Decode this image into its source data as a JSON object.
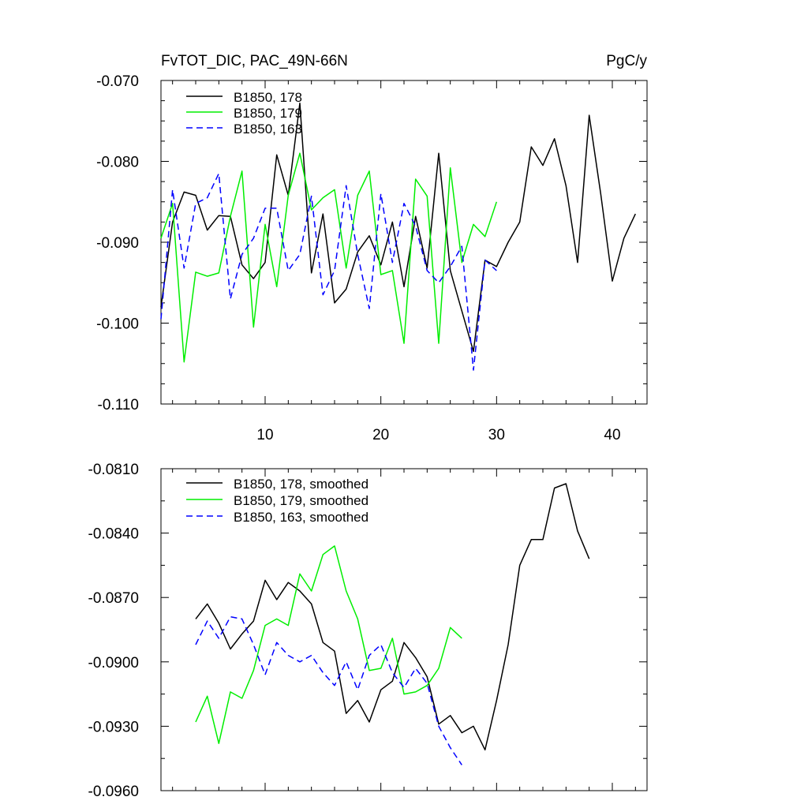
{
  "chart_data": [
    {
      "type": "line",
      "title_left": "FvTOT_DIC, PAC_49N-66N",
      "title_right": "PgC/y",
      "xlabel": "",
      "ylabel": "",
      "xlim": [
        1,
        43
      ],
      "ylim": [
        -0.11,
        -0.07
      ],
      "yticks": [
        -0.11,
        -0.1,
        -0.09,
        -0.08,
        -0.07
      ],
      "ytick_labels": [
        "-0.110",
        "-0.100",
        "-0.090",
        "-0.080",
        "-0.070"
      ],
      "xticks": [
        10,
        20,
        30,
        40
      ],
      "xtick_labels": [
        "10",
        "20",
        "30",
        "40"
      ],
      "legend_position": "top-left",
      "series": [
        {
          "name": "B1850, 178",
          "color": "#000000",
          "dash": "solid",
          "x": [
            1,
            2,
            3,
            4,
            5,
            6,
            7,
            8,
            9,
            10,
            11,
            12,
            13,
            14,
            15,
            16,
            17,
            18,
            19,
            20,
            21,
            22,
            23,
            24,
            25,
            26,
            27,
            28,
            29,
            30,
            31,
            32,
            33,
            34,
            35,
            36,
            37,
            38,
            39,
            40,
            41,
            42
          ],
          "values": [
            -0.098,
            -0.0875,
            -0.0838,
            -0.0842,
            -0.0885,
            -0.0867,
            -0.0868,
            -0.0928,
            -0.0945,
            -0.0925,
            -0.0792,
            -0.0842,
            -0.0728,
            -0.0938,
            -0.0865,
            -0.0975,
            -0.0958,
            -0.0912,
            -0.0892,
            -0.0928,
            -0.0875,
            -0.0955,
            -0.0868,
            -0.0932,
            -0.079,
            -0.0935,
            -0.0985,
            -0.1035,
            -0.0922,
            -0.093,
            -0.09,
            -0.0875,
            -0.0782,
            -0.0805,
            -0.0772,
            -0.083,
            -0.0925,
            -0.0743,
            -0.084,
            -0.0948,
            -0.0895,
            -0.0865
          ]
        },
        {
          "name": "B1850, 179",
          "color": "#00ee00",
          "dash": "solid",
          "x": [
            1,
            2,
            3,
            4,
            5,
            6,
            7,
            8,
            9,
            10,
            11,
            12,
            13,
            14,
            15,
            16,
            17,
            18,
            19,
            20,
            21,
            22,
            23,
            24,
            25,
            26,
            27,
            28,
            29,
            30
          ],
          "values": [
            -0.0895,
            -0.0852,
            -0.1048,
            -0.0937,
            -0.0942,
            -0.0938,
            -0.0868,
            -0.0812,
            -0.1005,
            -0.0878,
            -0.0955,
            -0.0842,
            -0.079,
            -0.086,
            -0.0845,
            -0.0835,
            -0.0932,
            -0.0842,
            -0.0812,
            -0.094,
            -0.0935,
            -0.1025,
            -0.0822,
            -0.0843,
            -0.1025,
            -0.0808,
            -0.0925,
            -0.0878,
            -0.0893,
            -0.085
          ]
        },
        {
          "name": "B1850, 163",
          "color": "#0000ff",
          "dash": "dashed",
          "x": [
            1,
            2,
            3,
            4,
            5,
            6,
            7,
            8,
            9,
            10,
            11,
            12,
            13,
            14,
            15,
            16,
            17,
            18,
            19,
            20,
            21,
            22,
            23,
            24,
            25,
            26,
            27,
            28,
            29,
            30
          ],
          "values": [
            -0.0995,
            -0.0835,
            -0.0932,
            -0.0852,
            -0.0845,
            -0.0815,
            -0.097,
            -0.0915,
            -0.0895,
            -0.0858,
            -0.0858,
            -0.0935,
            -0.0915,
            -0.0843,
            -0.0965,
            -0.0935,
            -0.083,
            -0.0915,
            -0.0982,
            -0.084,
            -0.0925,
            -0.0852,
            -0.088,
            -0.0935,
            -0.095,
            -0.093,
            -0.0905,
            -0.1058,
            -0.0922,
            -0.0935
          ]
        }
      ]
    },
    {
      "type": "line",
      "title_left": "",
      "title_right": "",
      "xlabel": "",
      "ylabel": "",
      "xlim": [
        1,
        43
      ],
      "ylim": [
        -0.096,
        -0.081
      ],
      "yticks": [
        -0.096,
        -0.093,
        -0.09,
        -0.087,
        -0.084,
        -0.081
      ],
      "ytick_labels": [
        "-0.0960",
        "-0.0930",
        "-0.0900",
        "-0.0870",
        "-0.0840",
        "-0.0810"
      ],
      "xticks": [
        10,
        20,
        30,
        40
      ],
      "xtick_labels": [],
      "legend_position": "top-left",
      "series": [
        {
          "name": "B1850, 178, smoothed",
          "color": "#000000",
          "dash": "solid",
          "x": [
            4,
            5,
            6,
            7,
            8,
            9,
            10,
            11,
            12,
            13,
            14,
            15,
            16,
            17,
            18,
            19,
            20,
            21,
            22,
            23,
            24,
            25,
            26,
            27,
            28,
            29,
            30,
            31,
            32,
            33,
            34,
            35,
            36,
            37,
            38
          ],
          "values": [
            -0.088,
            -0.0873,
            -0.0882,
            -0.0894,
            -0.0887,
            -0.0881,
            -0.0862,
            -0.0871,
            -0.0863,
            -0.0867,
            -0.0873,
            -0.0891,
            -0.0895,
            -0.0924,
            -0.0918,
            -0.0928,
            -0.0913,
            -0.0909,
            -0.0891,
            -0.0898,
            -0.0907,
            -0.0929,
            -0.0925,
            -0.0933,
            -0.093,
            -0.0941,
            -0.0918,
            -0.0892,
            -0.0855,
            -0.0843,
            -0.0843,
            -0.0819,
            -0.0817,
            -0.0839,
            -0.0852
          ]
        },
        {
          "name": "B1850, 179, smoothed",
          "color": "#00ee00",
          "dash": "solid",
          "x": [
            4,
            5,
            6,
            7,
            8,
            9,
            10,
            11,
            12,
            13,
            14,
            15,
            16,
            17,
            18,
            19,
            20,
            21,
            22,
            23,
            24,
            25,
            26,
            27
          ],
          "values": [
            -0.0928,
            -0.0916,
            -0.0938,
            -0.0914,
            -0.0917,
            -0.0904,
            -0.0883,
            -0.088,
            -0.0883,
            -0.0859,
            -0.0867,
            -0.085,
            -0.0846,
            -0.0867,
            -0.088,
            -0.0904,
            -0.0903,
            -0.0889,
            -0.0915,
            -0.0914,
            -0.0911,
            -0.0903,
            -0.0884,
            -0.0889
          ]
        },
        {
          "name": "B1850, 163, smoothed",
          "color": "#0000ff",
          "dash": "dashed",
          "x": [
            4,
            5,
            6,
            7,
            8,
            9,
            10,
            11,
            12,
            13,
            14,
            15,
            16,
            17,
            18,
            19,
            20,
            21,
            22,
            23,
            24,
            25,
            26,
            27
          ],
          "values": [
            -0.0892,
            -0.0881,
            -0.0889,
            -0.0879,
            -0.088,
            -0.0892,
            -0.0906,
            -0.0891,
            -0.0897,
            -0.09,
            -0.0897,
            -0.0905,
            -0.0911,
            -0.09,
            -0.0913,
            -0.0897,
            -0.0892,
            -0.0905,
            -0.0912,
            -0.0903,
            -0.091,
            -0.093,
            -0.094,
            -0.0948
          ]
        }
      ]
    }
  ]
}
